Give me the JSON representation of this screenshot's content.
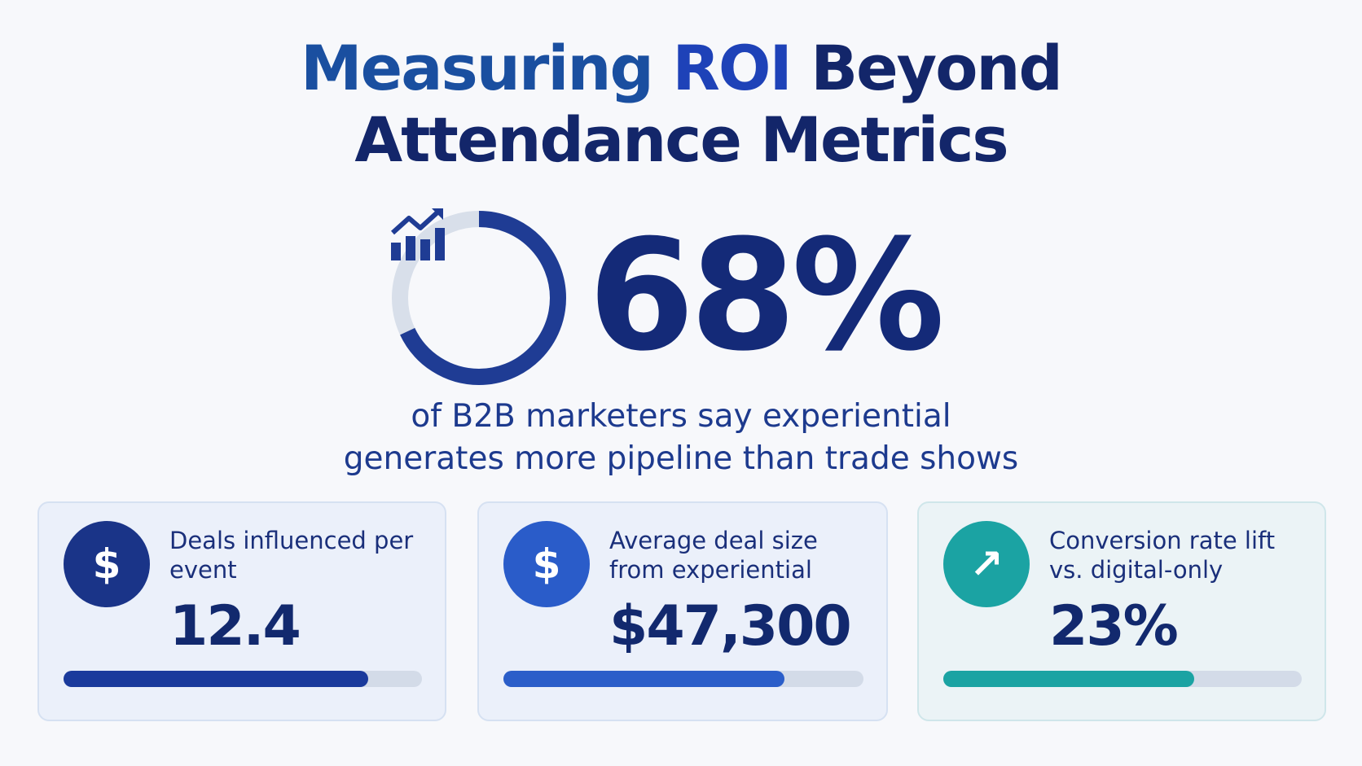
{
  "title": {
    "line1_part1": "Measuring ",
    "line1_highlight": "ROI",
    "line1_part2": " Beyond",
    "line2": "Attendance Metrics"
  },
  "hero": {
    "stat": "68%",
    "percent_value": 68,
    "icon": "growth-chart-icon",
    "description_line1": "of B2B marketers say experiential",
    "description_line2": "generates more pipeline than trade shows"
  },
  "cards": [
    {
      "icon": "dollar-icon",
      "icon_glyph": "$",
      "icon_color": "#1a3488",
      "label": "Deals influenced per event",
      "value": "12.4",
      "progress": 0.85,
      "bar_color": "#1a3a9c"
    },
    {
      "icon": "dollar-icon",
      "icon_glyph": "$",
      "icon_color": "#2a5cc9",
      "label": "Average deal size from experiential",
      "value": "$47,300",
      "progress": 0.78,
      "bar_color": "#2b5ec9"
    },
    {
      "icon": "arrow-up-right-icon",
      "icon_glyph": "↗",
      "icon_color": "#1ba3a3",
      "label": "Conversion rate lift vs. digital-only",
      "value": "23%",
      "progress": 0.7,
      "bar_color": "#1ba3a3"
    }
  ],
  "colors": {
    "navy": "#13266a",
    "ring_track": "#d8dfea",
    "ring_fill": "#1f3c94"
  }
}
